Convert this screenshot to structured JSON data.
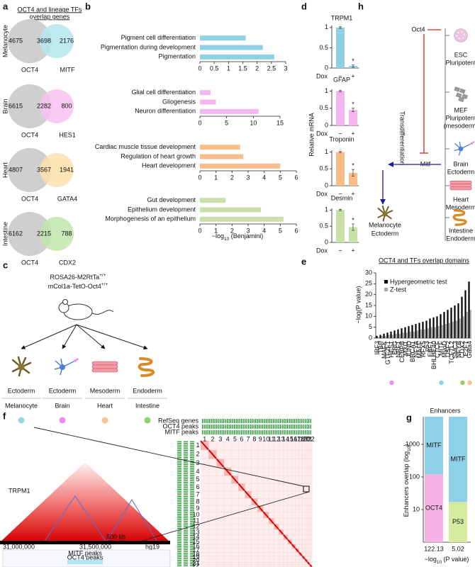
{
  "panel_labels": [
    "a",
    "b",
    "c",
    "d",
    "e",
    "f",
    "g",
    "h"
  ],
  "venn": {
    "title": [
      "OCT4 and lineage TFs",
      "overlap genes"
    ],
    "rows": [
      {
        "lineage": "Melanocyte",
        "left": "OCT4",
        "right": "MITF",
        "counts": [
          4675,
          3698,
          2176
        ],
        "color": "#b5e6f0"
      },
      {
        "lineage": "Brain",
        "left": "OCT4",
        "right": "HES1",
        "counts": [
          6615,
          2282,
          800
        ],
        "color": "#f8c2f0"
      },
      {
        "lineage": "Heart",
        "left": "OCT4",
        "right": "GATA4",
        "counts": [
          4807,
          3567,
          1941
        ],
        "color": "#fde0aa"
      },
      {
        "lineage": "Intestine",
        "left": "OCT4",
        "right": "CDX2",
        "counts": [
          6162,
          2215,
          788
        ],
        "color": "#bfe5ad"
      }
    ]
  },
  "chart_data": [
    {
      "type": "barh",
      "categories": [
        "Pigment cell differentiation",
        "Pigmentation during development",
        "Pigmentation"
      ],
      "values": [
        1.6,
        2.2,
        2.6
      ],
      "color": "#8fd0e2",
      "xlim": [
        0,
        3
      ],
      "xticks": [
        0,
        0.5,
        1,
        1.5,
        2,
        2.5,
        3
      ]
    },
    {
      "type": "barh",
      "categories": [
        "Glial cell differentiation",
        "Gliogenesis",
        "Neuron differentiation"
      ],
      "values": [
        2,
        3,
        11
      ],
      "color": "#f5b6ef",
      "xlim": [
        0,
        15
      ],
      "xticks": [
        0,
        5,
        10,
        15
      ]
    },
    {
      "type": "barh",
      "categories": [
        "Cardiac muscle tissue development",
        "Regulation of heart growth",
        "Heart development"
      ],
      "values": [
        2.5,
        2.7,
        5
      ],
      "color": "#f7be8c",
      "xlim": [
        0,
        6
      ],
      "xticks": [
        0,
        1,
        2,
        3,
        4,
        5,
        6
      ]
    },
    {
      "type": "barh",
      "categories": [
        "Gut development",
        "Epithelium development",
        "Morphogenesis of an epithelium"
      ],
      "values": [
        1.6,
        3.8,
        5.2
      ],
      "color": "#c8e1a9",
      "xlim": [
        0,
        6
      ],
      "xticks": [
        0,
        1,
        2,
        3,
        4,
        5,
        6
      ],
      "x_label": [
        "−log",
        "10",
        " (Benjamini)"
      ]
    },
    {
      "type": "bar",
      "title": "TRPM1",
      "categories": [
        "−",
        "+"
      ],
      "values": [
        1,
        0.05
      ],
      "errors": [
        0.02,
        0.03
      ],
      "value_annotations": [
        null,
        "*"
      ],
      "color": "#8fd0e2",
      "ylim": [
        0,
        1.05
      ],
      "yticks": [
        0,
        0.5,
        1
      ],
      "x_label": "Dox",
      "y_label": "Relative mRNA"
    },
    {
      "type": "bar",
      "title": "GFAP",
      "categories": [
        "−",
        "+"
      ],
      "values": [
        1,
        0.45
      ],
      "errors": [
        0.02,
        0.05
      ],
      "value_annotations": [
        null,
        "*"
      ],
      "color": "#f5b6ef",
      "ylim": [
        0,
        1.05
      ],
      "yticks": [
        0,
        0.5,
        1
      ],
      "x_label": "Dox"
    },
    {
      "type": "bar",
      "title": "Troponin",
      "categories": [
        "−",
        "+"
      ],
      "values": [
        1,
        0.38
      ],
      "errors": [
        0.02,
        0.1
      ],
      "value_annotations": [
        null,
        "*"
      ],
      "color": "#f7be8c",
      "ylim": [
        0,
        1.05
      ],
      "yticks": [
        0,
        0.5,
        1
      ],
      "x_label": "Dox"
    },
    {
      "type": "bar",
      "title": "Desmin",
      "categories": [
        "−",
        "+"
      ],
      "values": [
        1,
        0.47
      ],
      "errors": [
        0.02,
        0.1
      ],
      "value_annotations": [
        null,
        "*"
      ],
      "color": "#c8e1a9",
      "ylim": [
        0,
        1.05
      ],
      "yticks": [
        0,
        0.5,
        1
      ],
      "x_label": "Dox"
    },
    {
      "type": "grouped_bar",
      "title": "OCT4 and TFs overlap domains",
      "y_label": "−log(P value)",
      "categories": [
        "IRF3",
        "TBP",
        "MAFK",
        "GTF2F1",
        "HES1",
        "ERG",
        "NRF1",
        "CEBPB",
        "MXI1",
        "JUND",
        "BRCA1",
        "NFYA",
        "MAFF",
        "RFX5",
        "p53",
        "EBF1",
        "BHLHE40",
        "CTCF",
        "MITF",
        "MyoD",
        "USF2",
        "TCF7L2",
        "SMC3",
        "NFYB",
        "CDX2",
        "E2F7",
        "Gata4"
      ],
      "series": [
        {
          "name": "Hypergeometric test",
          "color": "#000000",
          "values": [
            1,
            1.5,
            2,
            2.5,
            3,
            3.5,
            4,
            4.5,
            5,
            5.5,
            6,
            6.5,
            7,
            7.5,
            8,
            9,
            9.5,
            10,
            11,
            12,
            13,
            14,
            15,
            16,
            19,
            22,
            26
          ]
        },
        {
          "name": "Z-test",
          "color": "#a6a6a6",
          "values": [
            0.5,
            1,
            1,
            1.5,
            1.5,
            2,
            2,
            2.5,
            2.5,
            3,
            3,
            3.5,
            4,
            4,
            4.5,
            5,
            5,
            5.5,
            6,
            6.5,
            7,
            7.5,
            8,
            9,
            10,
            12,
            13
          ]
        }
      ],
      "dot_colors": [
        null,
        null,
        null,
        null,
        "#f08ef0",
        null,
        null,
        null,
        null,
        null,
        null,
        null,
        null,
        null,
        null,
        null,
        null,
        null,
        "#8fd0e2",
        null,
        null,
        null,
        null,
        null,
        "#8fd16a",
        null,
        "#f8c58c"
      ],
      "ylim": [
        0,
        30
      ],
      "yticks": [
        0,
        5,
        10,
        15,
        20,
        25,
        30
      ],
      "legend": "upper left"
    },
    {
      "type": "stacked_bar",
      "title": "Enhancers",
      "categories": [
        "122.13",
        "5.02"
      ],
      "series": [
        {
          "name": "OCT4",
          "color": "#f7b3e6",
          "values": [
            120,
            null
          ]
        },
        {
          "name": "P53",
          "color": "#d4eba0",
          "values": [
            null,
            17
          ]
        },
        {
          "name": "MITF",
          "color": "#8fd0e8",
          "values": [
            6880,
            6983
          ]
        }
      ],
      "log_scale": true,
      "ylim": [
        1,
        7000
      ],
      "yticks": [
        10,
        100,
        1000
      ],
      "y_label": [
        "Enhancers overlap (log",
        "10",
        ")"
      ],
      "x_label": [
        "−log",
        "10",
        " (P value)"
      ]
    }
  ],
  "lineage_scheme": {
    "genotype": [
      [
        "ROSA26-M2RtTa",
        "+/+"
      ],
      [
        "mCol1a-TetO-Oct4",
        "+/+"
      ]
    ],
    "targets": [
      {
        "layer": "Ectoderm",
        "cell": "Melanocyte",
        "color": "#9fd4e3"
      },
      {
        "layer": "Ectoderm",
        "cell": "Brain",
        "color": "#f08ef0"
      },
      {
        "layer": "Mesoderm",
        "cell": "Heart",
        "color": "#f8c58c"
      },
      {
        "layer": "Endoderm",
        "cell": "Intestine",
        "color": "#8fd16a"
      }
    ]
  },
  "hic": {
    "tracks": [
      "RefSeq genes",
      "OCT4 peaks",
      "MITF peaks"
    ],
    "gene": "TRPM1",
    "coords": [
      "31,000,000",
      "31,500,000"
    ],
    "scale": "500 kb",
    "assembly": "hg19",
    "browser_tracks": [
      "MITF peaks",
      "OCT4 peaks"
    ],
    "chromosomes": [
      "1",
      "2",
      "3",
      "4",
      "5",
      "6",
      "7",
      "8",
      "9",
      "10",
      "11",
      "12",
      "13",
      "14",
      "15",
      "16",
      "17",
      "18",
      "19",
      "20",
      "21",
      "22"
    ]
  },
  "model": {
    "factor": "Oct4",
    "cells": [
      {
        "name": "ESC",
        "note": [
          "Pluripotent"
        ]
      },
      {
        "name": "MEF",
        "note": [
          "Pluripotent",
          "(mesoderm)"
        ]
      },
      {
        "name": "Brain",
        "note": [
          "Ectoderm"
        ]
      },
      {
        "name": "Heart",
        "note": [
          "Mesoderm"
        ]
      },
      {
        "name": "Intestine",
        "note": [
          "Endoderm"
        ]
      }
    ],
    "driver": "Mitf",
    "process": "Transdifferentiation",
    "result": {
      "name": "Melanocyte",
      "note": [
        "Ectoderm"
      ]
    }
  }
}
